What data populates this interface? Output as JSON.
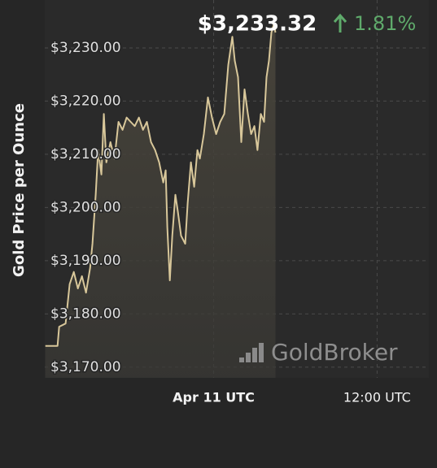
{
  "chart_data": {
    "type": "line",
    "y_label": "Gold Price per Ounce",
    "current_price": "$3,233.32",
    "change": "1.81%",
    "watermark": "GoldBroker",
    "x": [
      -12.36,
      -11.46,
      -11.34,
      -10.87,
      -10.57,
      -10.27,
      -9.97,
      -9.67,
      -9.37,
      -9.07,
      -8.9,
      -8.66,
      -8.48,
      -8.24,
      -8.06,
      -7.88,
      -7.58,
      -7.28,
      -6.99,
      -6.69,
      -6.39,
      -6.09,
      -5.79,
      -5.49,
      -5.19,
      -4.9,
      -4.6,
      -4.3,
      -4.0,
      -3.7,
      -3.52,
      -3.4,
      -3.22,
      -3.04,
      -2.81,
      -2.63,
      -2.39,
      -2.09,
      -1.91,
      -1.67,
      -1.43,
      -1.19,
      -1.01,
      -0.72,
      -0.42,
      -0.12,
      0.18,
      0.48,
      0.78,
      1.07,
      1.37,
      1.55,
      1.79,
      2.03,
      2.27,
      2.51,
      2.75,
      2.99,
      3.22,
      3.46,
      3.7,
      3.88,
      4.06,
      4.24,
      4.42,
      4.54
    ],
    "series": [
      {
        "color": "#d8c79a",
        "values": [
          3174.0,
          3174.0,
          3177.6,
          3178.2,
          3185.6,
          3187.9,
          3184.8,
          3187.1,
          3184.0,
          3188.6,
          3193.2,
          3202.4,
          3210.8,
          3206.2,
          3217.6,
          3208.5,
          3212.3,
          3209.2,
          3216.1,
          3214.6,
          3216.9,
          3216.1,
          3215.3,
          3216.9,
          3214.6,
          3216.1,
          3212.3,
          3210.8,
          3208.5,
          3204.7,
          3207.0,
          3196.3,
          3186.3,
          3194.7,
          3202.4,
          3199.3,
          3194.7,
          3193.2,
          3200.8,
          3208.5,
          3203.9,
          3210.8,
          3209.2,
          3213.8,
          3220.7,
          3216.9,
          3213.8,
          3216.1,
          3217.6,
          3226.8,
          3232.1,
          3227.6,
          3224.5,
          3212.3,
          3222.2,
          3217.6,
          3213.8,
          3215.3,
          3210.8,
          3217.6,
          3216.1,
          3224.5,
          3227.6,
          3232.9,
          3234.4,
          3232.9
        ]
      }
    ],
    "xlim": [
      -12.4,
      15.8
    ],
    "xticks": [
      {
        "value": 0,
        "label": "Apr 11 UTC"
      },
      {
        "value": 12,
        "label": "12:00 UTC"
      }
    ],
    "ylim": [
      3168,
      3239
    ],
    "yticks": [
      {
        "value": 3170,
        "label": "$3,170.00"
      },
      {
        "value": 3180,
        "label": "$3,180.00"
      },
      {
        "value": 3190,
        "label": "$3,190.00"
      },
      {
        "value": 3200,
        "label": "$3,200.00"
      },
      {
        "value": 3210,
        "label": "$3,210.00"
      },
      {
        "value": 3220,
        "label": "$3,220.00"
      },
      {
        "value": 3230,
        "label": "$3,230.00"
      }
    ],
    "grid": true
  }
}
